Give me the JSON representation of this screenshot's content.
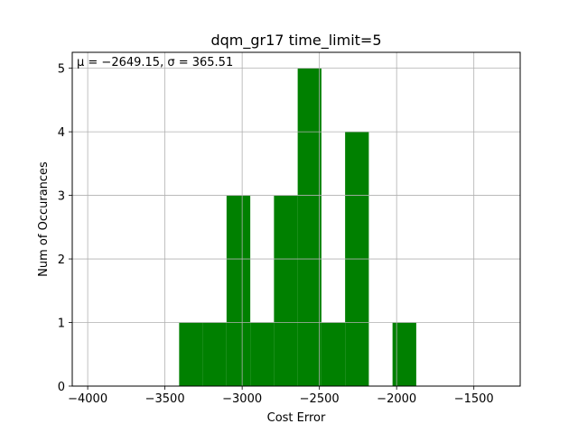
{
  "chart_data": {
    "type": "bar",
    "title": "dqm_gr17 time_limit=5",
    "xlabel": "Cost Error",
    "ylabel": "Num of Occurances",
    "annotation": "μ = −2649.15,  σ = 365.51",
    "xlim": [
      -4100,
      -1200
    ],
    "ylim": [
      0,
      5.25
    ],
    "grid": true,
    "bar_color": "#008000",
    "bin_width": 153.5,
    "x_ticks": [
      {
        "value": -4000,
        "label": "−4000"
      },
      {
        "value": -3500,
        "label": "−3500"
      },
      {
        "value": -3000,
        "label": "−3000"
      },
      {
        "value": -2500,
        "label": "−2500"
      },
      {
        "value": -2000,
        "label": "−2000"
      },
      {
        "value": -1500,
        "label": "−1500"
      }
    ],
    "y_ticks": [
      {
        "value": 0,
        "label": "0"
      },
      {
        "value": 1,
        "label": "1"
      },
      {
        "value": 2,
        "label": "2"
      },
      {
        "value": 3,
        "label": "3"
      },
      {
        "value": 4,
        "label": "4"
      },
      {
        "value": 5,
        "label": "5"
      }
    ],
    "bins": [
      {
        "start": -3408,
        "end": -3254.5,
        "count": 1
      },
      {
        "start": -3254.5,
        "end": -3101,
        "count": 1
      },
      {
        "start": -3101,
        "end": -2947.5,
        "count": 3
      },
      {
        "start": -2947.5,
        "end": -2794,
        "count": 1
      },
      {
        "start": -2794,
        "end": -2640.5,
        "count": 3
      },
      {
        "start": -2640.5,
        "end": -2487,
        "count": 5
      },
      {
        "start": -2487,
        "end": -2333.5,
        "count": 1
      },
      {
        "start": -2333.5,
        "end": -2180,
        "count": 4
      },
      {
        "start": -2180,
        "end": -2026.5,
        "count": 0
      },
      {
        "start": -2026.5,
        "end": -1873,
        "count": 1
      }
    ]
  }
}
